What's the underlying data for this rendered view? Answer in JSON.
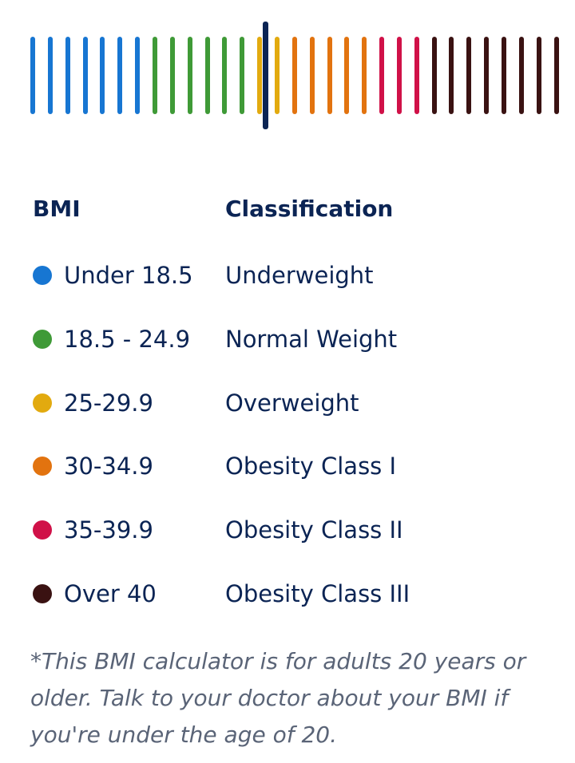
{
  "colors": {
    "underweight": "#1776d2",
    "normal": "#3f9a37",
    "overweight": "#e2aa0f",
    "obesity1": "#e2730f",
    "obesity2": "#d01148",
    "obesity3": "#3a1212",
    "marker": "#0b2454"
  },
  "scale": {
    "tick_colors": [
      "underweight",
      "underweight",
      "underweight",
      "underweight",
      "underweight",
      "underweight",
      "underweight",
      "normal",
      "normal",
      "normal",
      "normal",
      "normal",
      "normal",
      "overweight",
      "overweight",
      "obesity1",
      "obesity1",
      "obesity1",
      "obesity1",
      "obesity1",
      "obesity2",
      "obesity2",
      "obesity2",
      "obesity3",
      "obesity3",
      "obesity3",
      "obesity3",
      "obesity3",
      "obesity3",
      "obesity3",
      "obesity3"
    ]
  },
  "table": {
    "header_bmi": "BMI",
    "header_classification": "Classification",
    "rows": [
      {
        "range": "Under 18.5",
        "classification": "Underweight",
        "color": "underweight"
      },
      {
        "range": "18.5 - 24.9",
        "classification": "Normal Weight",
        "color": "normal"
      },
      {
        "range": "25-29.9",
        "classification": "Overweight",
        "color": "overweight"
      },
      {
        "range": "30-34.9",
        "classification": "Obesity Class I",
        "color": "obesity1"
      },
      {
        "range": "35-39.9",
        "classification": "Obesity Class II",
        "color": "obesity2"
      },
      {
        "range": "Over 40",
        "classification": "Obesity Class III",
        "color": "obesity3"
      }
    ]
  },
  "note": "*This BMI calculator is for adults 20 years or older. Talk to your doctor about your BMI if you're under the age of 20."
}
